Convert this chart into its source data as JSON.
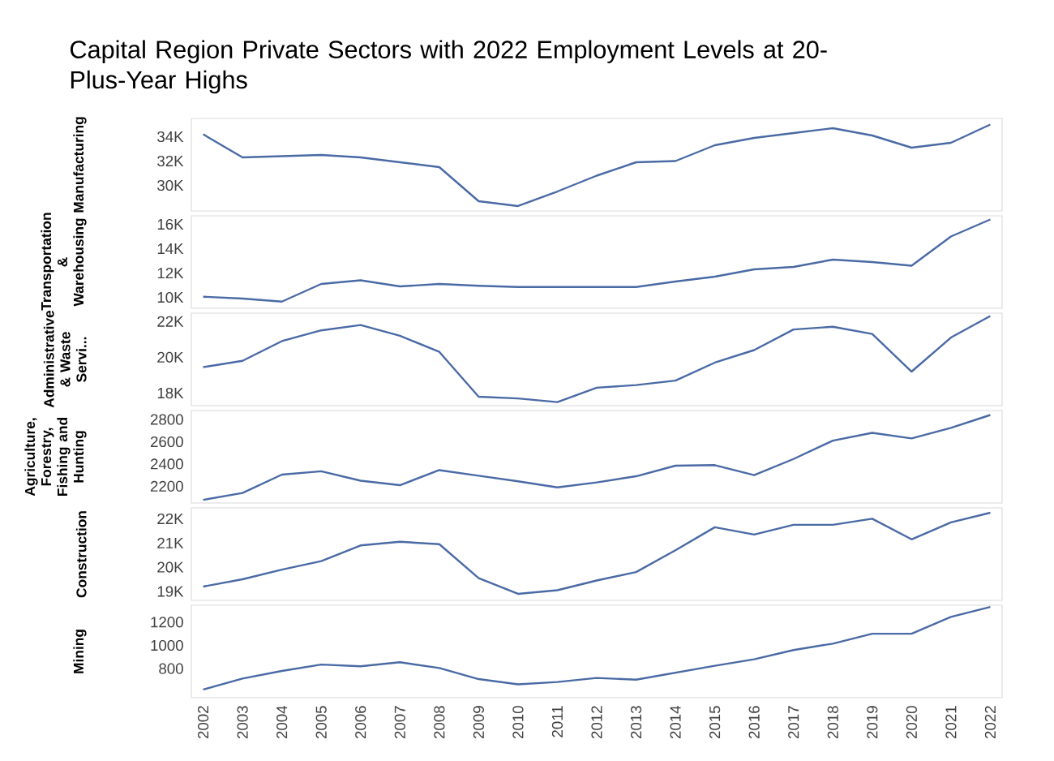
{
  "chart_data": [
    {
      "type": "line",
      "title": "Capital Region Private Sectors with 2022 Employment Levels at 20-Plus-Year Highs",
      "ylabel": "Manufacturing",
      "tick_labels": "y",
      "categories": [
        "2002",
        "2003",
        "2004",
        "2005",
        "2006",
        "2007",
        "2008",
        "2009",
        "2010",
        "2011",
        "2012",
        "2013",
        "2014",
        "2015",
        "2016",
        "2017",
        "2018",
        "2019",
        "2020",
        "2021",
        "2022"
      ],
      "ylim": [
        27900,
        35500
      ],
      "yticks": [
        {
          "value": 30000,
          "label": "30K"
        },
        {
          "value": 32000,
          "label": "32K"
        },
        {
          "value": 34000,
          "label": "34K"
        }
      ],
      "series": [
        {
          "color": "#4a6aa5",
          "values": [
            34200,
            32300,
            32400,
            32500,
            32300,
            31900,
            31500,
            28700,
            28300,
            29500,
            30800,
            31900,
            32000,
            33300,
            33900,
            34300,
            34700,
            34100,
            33100,
            33500,
            35000
          ]
        }
      ]
    },
    {
      "type": "line",
      "ylabel": "Transportation & Warehousing",
      "tick_labels": "y",
      "categories": [
        "2002",
        "2003",
        "2004",
        "2005",
        "2006",
        "2007",
        "2008",
        "2009",
        "2010",
        "2011",
        "2012",
        "2013",
        "2014",
        "2015",
        "2016",
        "2017",
        "2018",
        "2019",
        "2020",
        "2021",
        "2022"
      ],
      "ylim": [
        9100,
        16700
      ],
      "yticks": [
        {
          "value": 10000,
          "label": "10K"
        },
        {
          "value": 12000,
          "label": "12K"
        },
        {
          "value": 14000,
          "label": "14K"
        },
        {
          "value": 16000,
          "label": "16K"
        }
      ],
      "series": [
        {
          "color": "#4a6aa5",
          "values": [
            10050,
            9900,
            9650,
            11100,
            11400,
            10900,
            11100,
            10950,
            10850,
            10850,
            10850,
            10850,
            11300,
            11700,
            12300,
            12500,
            13100,
            12900,
            12600,
            15000,
            16400
          ]
        }
      ]
    },
    {
      "type": "line",
      "ylabel": "Administrative & Waste Servi...",
      "tick_labels": "y",
      "categories": [
        "2002",
        "2003",
        "2004",
        "2005",
        "2006",
        "2007",
        "2008",
        "2009",
        "2010",
        "2011",
        "2012",
        "2013",
        "2014",
        "2015",
        "2016",
        "2017",
        "2018",
        "2019",
        "2020",
        "2021",
        "2022"
      ],
      "ylim": [
        17300,
        22460
      ],
      "yticks": [
        {
          "value": 18000,
          "label": "18K"
        },
        {
          "value": 20000,
          "label": "20K"
        },
        {
          "value": 22000,
          "label": "22K"
        }
      ],
      "series": [
        {
          "color": "#4a6aa5",
          "values": [
            19450,
            19800,
            20900,
            21500,
            21800,
            21200,
            20300,
            17800,
            17700,
            17500,
            18300,
            18450,
            18700,
            19700,
            20400,
            21550,
            21700,
            21300,
            19200,
            21100,
            22300
          ]
        }
      ]
    },
    {
      "type": "line",
      "ylabel": "Agriculture, Forestry, Fishing and Hunting",
      "tick_labels": "y",
      "categories": [
        "2002",
        "2003",
        "2004",
        "2005",
        "2006",
        "2007",
        "2008",
        "2009",
        "2010",
        "2011",
        "2012",
        "2013",
        "2014",
        "2015",
        "2016",
        "2017",
        "2018",
        "2019",
        "2020",
        "2021",
        "2022"
      ],
      "ylim": [
        2050,
        2880
      ],
      "yticks": [
        2200,
        2400,
        2600,
        2800
      ],
      "series": [
        {
          "color": "#4a6aa5",
          "values": [
            2078,
            2140,
            2305,
            2335,
            2250,
            2210,
            2345,
            2295,
            2245,
            2190,
            2235,
            2290,
            2385,
            2390,
            2300,
            2445,
            2610,
            2680,
            2630,
            2725,
            2840
          ]
        }
      ]
    },
    {
      "type": "line",
      "ylabel": "Construction",
      "tick_labels": "y",
      "categories": [
        "2002",
        "2003",
        "2004",
        "2005",
        "2006",
        "2007",
        "2008",
        "2009",
        "2010",
        "2011",
        "2012",
        "2013",
        "2014",
        "2015",
        "2016",
        "2017",
        "2018",
        "2019",
        "2020",
        "2021",
        "2022"
      ],
      "ylim": [
        18630,
        22450
      ],
      "yticks": [
        {
          "value": 19000,
          "label": "19K"
        },
        {
          "value": 20000,
          "label": "20K"
        },
        {
          "value": 21000,
          "label": "21K"
        },
        {
          "value": 22000,
          "label": "22K"
        }
      ],
      "series": [
        {
          "color": "#4a6aa5",
          "values": [
            19200,
            19500,
            19900,
            20250,
            20900,
            21050,
            20950,
            19550,
            18900,
            19050,
            19450,
            19800,
            20700,
            21650,
            21350,
            21750,
            21750,
            22000,
            21150,
            21850,
            22250
          ]
        }
      ]
    },
    {
      "type": "line",
      "ylabel": "Mining",
      "categories": [
        "2002",
        "2003",
        "2004",
        "2005",
        "2006",
        "2007",
        "2008",
        "2009",
        "2010",
        "2011",
        "2012",
        "2013",
        "2014",
        "2015",
        "2016",
        "2017",
        "2018",
        "2019",
        "2020",
        "2021",
        "2022"
      ],
      "ylim": [
        550,
        1345
      ],
      "yticks": [
        800,
        1000,
        1200
      ],
      "series": [
        {
          "color": "#4a6aa5",
          "values": [
            620,
            715,
            780,
            835,
            820,
            855,
            805,
            710,
            665,
            685,
            720,
            705,
            765,
            825,
            880,
            960,
            1015,
            1100,
            1100,
            1245,
            1330
          ]
        }
      ]
    }
  ]
}
